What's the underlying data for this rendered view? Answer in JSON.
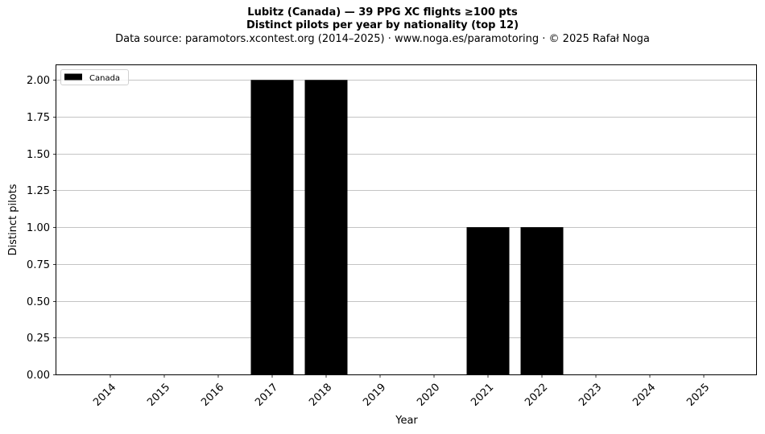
{
  "chart_data": {
    "type": "bar",
    "title": "Lubitz (Canada)  —  39 PPG XC flights ≥100 pts",
    "title2": "Distinct pilots per year by nationality (top 12)",
    "subtitle": "Data source: paramotors.xcontest.org (2014–2025)  ·  www.noga.es/paramotoring  ·  © 2025 Rafał Noga",
    "xlabel": "Year",
    "ylabel": "Distinct pilots",
    "categories": [
      "2014",
      "2015",
      "2016",
      "2017",
      "2018",
      "2019",
      "2020",
      "2021",
      "2022",
      "2023",
      "2024",
      "2025"
    ],
    "series": [
      {
        "name": "Canada",
        "color": "#000000",
        "values": [
          0,
          0,
          0,
          2,
          2,
          0,
          0,
          1,
          1,
          0,
          0,
          0
        ]
      }
    ],
    "ylim": [
      0,
      2.1
    ],
    "yticks": [
      "0.00",
      "0.25",
      "0.50",
      "0.75",
      "1.00",
      "1.25",
      "1.50",
      "1.75",
      "2.00"
    ],
    "ytick_values": [
      0,
      0.25,
      0.5,
      0.75,
      1.0,
      1.25,
      1.5,
      1.75,
      2.0
    ],
    "grid": "horizontal",
    "legend_position": "top-left"
  }
}
